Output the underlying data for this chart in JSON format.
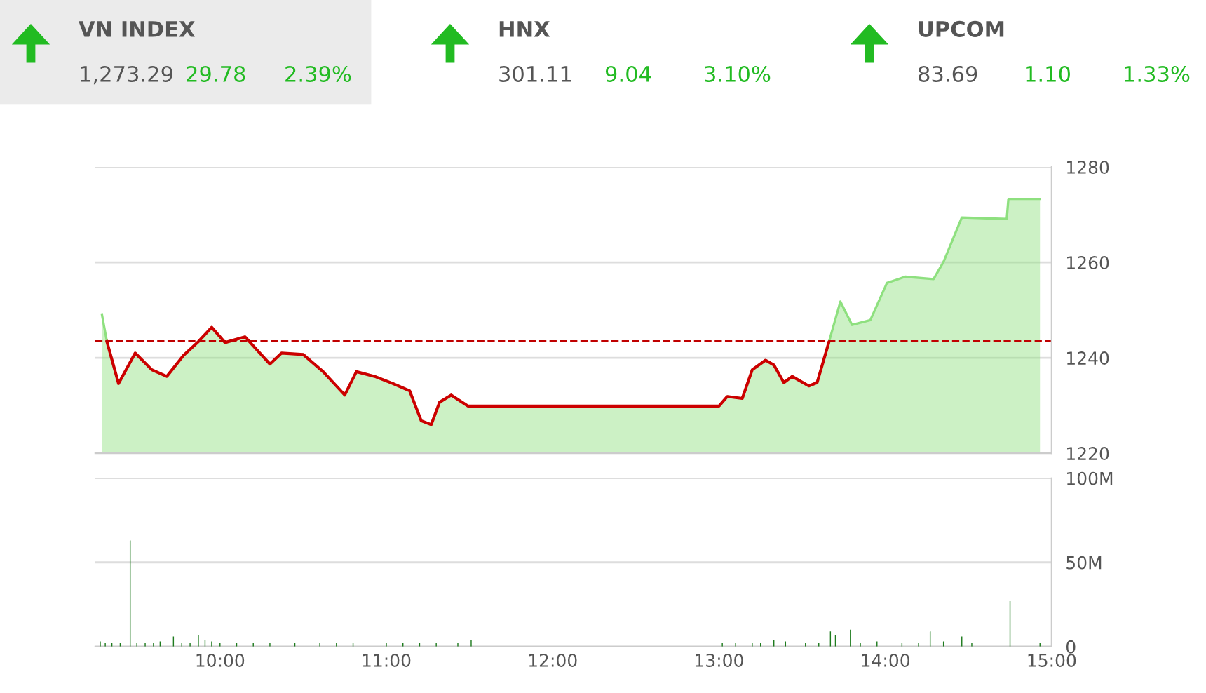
{
  "chart_data": [
    {
      "type": "other",
      "annotations": [
        "VN INDEX",
        "1,273.29",
        "29.78",
        "2.39%",
        "HNX",
        "301.11",
        "9.04",
        "3.10%",
        "UPCOM",
        "83.69",
        "1.10",
        "1.33%"
      ]
    },
    {
      "type": "area",
      "x": [
        9.29,
        9.32,
        9.39,
        9.49,
        9.59,
        9.68,
        9.78,
        9.87,
        9.95,
        10.03,
        10.15,
        10.3,
        10.37,
        10.5,
        10.62,
        10.75,
        10.82,
        10.93,
        11.04,
        11.14,
        11.21,
        11.27,
        11.32,
        11.39,
        11.49,
        13.0,
        13.05,
        13.14,
        13.2,
        13.28,
        13.33,
        13.39,
        13.44,
        13.54,
        13.59,
        13.66,
        13.73,
        13.8,
        13.91,
        14.01,
        14.12,
        14.29,
        14.35,
        14.46,
        14.73,
        14.74,
        14.93
      ],
      "series": [
        {
          "type": "area",
          "color": "#8ee07f",
          "values": [
            1249.1,
            1243.4,
            1234.6,
            1241.0,
            1237.5,
            1236.1,
            1240.5,
            1243.4,
            1246.4,
            1243.2,
            1244.4,
            1238.7,
            1241.0,
            1240.7,
            1237.1,
            1232.2,
            1237.1,
            1236.1,
            1234.6,
            1233.1,
            1226.8,
            1226.0,
            1230.7,
            1232.2,
            1229.9,
            1229.9,
            1231.9,
            1231.5,
            1237.5,
            1239.5,
            1238.5,
            1234.8,
            1236.1,
            1234.1,
            1234.8,
            1243.2,
            1251.8,
            1246.9,
            1247.9,
            1255.7,
            1257.0,
            1256.5,
            1260.1,
            1269.4,
            1269.1,
            1273.3,
            1273.3
          ]
        },
        {
          "type": "line",
          "color": "#cc0000",
          "values": [
            null,
            1243.4,
            1234.6,
            1241.0,
            1237.5,
            1236.1,
            1240.5,
            1243.4,
            1246.4,
            1243.2,
            1244.4,
            1238.7,
            1241.0,
            1240.7,
            1237.1,
            1232.2,
            1237.1,
            1236.1,
            1234.6,
            1233.1,
            1226.8,
            1226.0,
            1230.7,
            1232.2,
            1229.9,
            1229.9,
            1231.9,
            1231.5,
            1237.5,
            1239.5,
            1238.5,
            1234.8,
            1236.1,
            1234.1,
            1234.8,
            1243.2,
            null,
            null,
            null,
            null,
            null,
            null,
            null,
            null,
            null,
            null,
            null
          ]
        }
      ],
      "xlim": [
        9.25,
        15
      ],
      "ylim": [
        1220,
        1280
      ],
      "yticks": [
        1220,
        1240,
        1260,
        1280
      ],
      "grid": "y",
      "tick_labels": "y",
      "ref_lines": [
        {
          "axis": "y",
          "value": 1243.51,
          "color": "#c00000",
          "line_style": "dashed"
        }
      ]
    },
    {
      "type": "bar",
      "color": "#1e7b1e",
      "x": [
        9.28,
        9.31,
        9.35,
        9.4,
        9.46,
        9.5,
        9.55,
        9.6,
        9.64,
        9.72,
        9.77,
        9.82,
        9.87,
        9.91,
        9.95,
        10.0,
        10.1,
        10.2,
        10.3,
        10.45,
        10.6,
        10.7,
        10.8,
        11.0,
        11.1,
        11.2,
        11.3,
        11.43,
        11.51,
        13.02,
        13.1,
        13.2,
        13.25,
        13.33,
        13.4,
        13.52,
        13.6,
        13.67,
        13.7,
        13.79,
        13.85,
        13.95,
        14.1,
        14.2,
        14.27,
        14.35,
        14.46,
        14.52,
        14.75,
        14.93
      ],
      "values": [
        3,
        2,
        2,
        2,
        63,
        2,
        2,
        2,
        3,
        6,
        2,
        2,
        7,
        4,
        3,
        2,
        2,
        2,
        2,
        2,
        2,
        2,
        2,
        2,
        2,
        2,
        2,
        2,
        4,
        2,
        2,
        2,
        2,
        4,
        3,
        2,
        2,
        9,
        7,
        10,
        2,
        3,
        2,
        2,
        9,
        3,
        6,
        2,
        27,
        2
      ],
      "xlim": [
        9.25,
        15
      ],
      "ylim": [
        0,
        100
      ],
      "xticks": [
        {
          "value": 10,
          "label": "10:00"
        },
        {
          "value": 11,
          "label": "11:00"
        },
        {
          "value": 12,
          "label": "12:00"
        },
        {
          "value": 13,
          "label": "13:00"
        },
        {
          "value": 14,
          "label": "14:00"
        },
        {
          "value": 15,
          "label": "15:00"
        }
      ],
      "yticks": [
        {
          "value": 0,
          "label": "0"
        },
        {
          "value": 50,
          "label": "50M"
        },
        {
          "value": 100,
          "label": "100M"
        }
      ],
      "grid": "y"
    }
  ]
}
